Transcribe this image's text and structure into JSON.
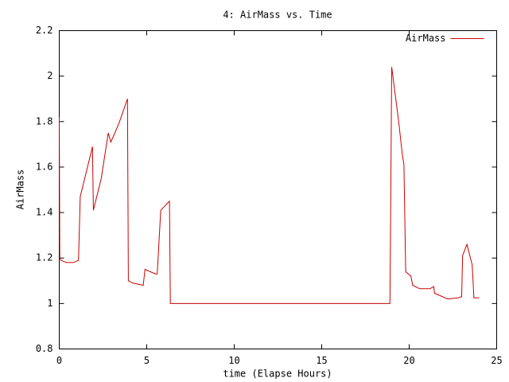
{
  "chart_data": {
    "type": "line",
    "title": "4: AirMass vs. Time",
    "xlabel": "time (Elapse Hours)",
    "ylabel": "AirMass",
    "xlim": [
      0,
      25
    ],
    "xticks": [
      0,
      5,
      10,
      15,
      20,
      25
    ],
    "ylim": [
      0.8,
      2.2
    ],
    "yticks": [
      0.8,
      1,
      1.2,
      1.4,
      1.6,
      1.8,
      2,
      2.2
    ],
    "grid": false,
    "legend": "upper right",
    "x": [
      0.0,
      0.03,
      0.1,
      0.4,
      0.8,
      1.1,
      1.2,
      1.9,
      1.95,
      2.4,
      2.8,
      2.95,
      3.4,
      3.9,
      3.95,
      4.2,
      4.8,
      4.9,
      5.5,
      5.6,
      5.8,
      6.3,
      6.35,
      10,
      15,
      18.9,
      18.95,
      19.0,
      19.4,
      19.6,
      19.7,
      19.8,
      20.1,
      20.2,
      20.6,
      21.2,
      21.4,
      21.45,
      22.2,
      22.8,
      23.0,
      23.05,
      23.3,
      23.6,
      23.7,
      24.0
    ],
    "series": [
      {
        "name": "AirMass",
        "color": "#cc0000",
        "values": [
          1.82,
          1.2,
          1.19,
          1.18,
          1.18,
          1.19,
          1.47,
          1.69,
          1.41,
          1.55,
          1.75,
          1.71,
          1.79,
          1.9,
          1.1,
          1.09,
          1.08,
          1.15,
          1.13,
          1.13,
          1.41,
          1.45,
          1.0,
          1.0,
          1.0,
          1.0,
          1.49,
          2.04,
          1.8,
          1.66,
          1.61,
          1.14,
          1.12,
          1.08,
          1.065,
          1.065,
          1.075,
          1.045,
          1.02,
          1.025,
          1.03,
          1.21,
          1.26,
          1.17,
          1.025,
          1.025
        ]
      }
    ]
  }
}
